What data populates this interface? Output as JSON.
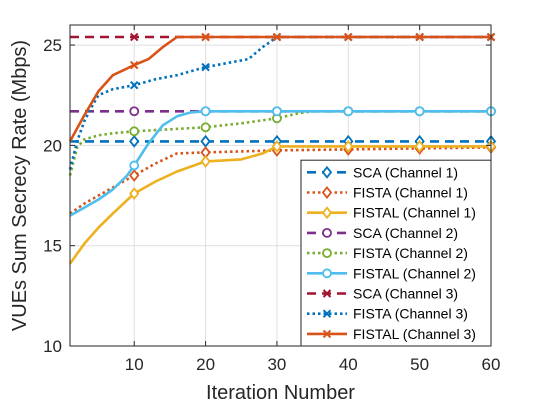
{
  "chart_data": {
    "type": "line",
    "title": "",
    "xlabel": "Iteration Number",
    "ylabel": "VUEs Sum Secrecy Rate (Mbps)",
    "xlim": [
      1,
      60
    ],
    "ylim": [
      10,
      26
    ],
    "xticks": [
      10,
      20,
      30,
      40,
      50,
      60
    ],
    "yticks": [
      10,
      15,
      20,
      25
    ],
    "xtick_labels": [
      "10",
      "20",
      "30",
      "40",
      "50",
      "60"
    ],
    "ytick_labels": [
      "10",
      "15",
      "20",
      "25"
    ],
    "grid": true,
    "legend_position": "bottom-right",
    "series": [
      {
        "name": "SCA (Channel 1)",
        "color": "#0072BD",
        "style": "dashed",
        "marker": "diamond",
        "x": [
          1,
          10,
          20,
          30,
          40,
          50,
          60
        ],
        "y": [
          20.2,
          20.2,
          20.2,
          20.2,
          20.2,
          20.2,
          20.2
        ]
      },
      {
        "name": "FISTA (Channel 1)",
        "color": "#D95319",
        "style": "dotted",
        "marker": "diamond",
        "x": [
          1,
          3,
          5,
          7,
          10,
          13,
          16,
          20,
          25,
          30,
          40,
          50,
          60
        ],
        "y": [
          16.6,
          17.1,
          17.5,
          17.9,
          18.5,
          19.1,
          19.6,
          19.65,
          19.7,
          19.75,
          19.8,
          19.85,
          19.9
        ]
      },
      {
        "name": "FISTAL (Channel 1)",
        "color": "#EDB120",
        "style": "solid",
        "marker": "diamond",
        "x": [
          1,
          3,
          5,
          7,
          10,
          13,
          16,
          20,
          25,
          28,
          30,
          40,
          50,
          60
        ],
        "y": [
          14.1,
          15.1,
          15.9,
          16.6,
          17.6,
          18.2,
          18.7,
          19.2,
          19.3,
          19.6,
          19.95,
          19.95,
          19.95,
          19.95
        ]
      },
      {
        "name": "SCA (Channel 2)",
        "color": "#7E2F8E",
        "style": "dashed",
        "marker": "circle",
        "x": [
          1,
          10,
          20,
          30,
          40,
          50,
          60
        ],
        "y": [
          21.7,
          21.7,
          21.7,
          21.7,
          21.7,
          21.7,
          21.7
        ]
      },
      {
        "name": "FISTA (Channel 2)",
        "color": "#77AC30",
        "style": "dotted",
        "marker": "circle",
        "x": [
          1,
          2,
          3,
          5,
          7,
          10,
          15,
          20,
          25,
          30,
          33,
          35,
          40,
          50,
          60
        ],
        "y": [
          18.5,
          19.9,
          20.3,
          20.5,
          20.6,
          20.7,
          20.8,
          20.9,
          21.1,
          21.35,
          21.6,
          21.7,
          21.7,
          21.7,
          21.7
        ]
      },
      {
        "name": "FISTAL (Channel 2)",
        "color": "#4DBEEE",
        "style": "solid",
        "marker": "circle",
        "x": [
          1,
          3,
          5,
          7,
          9,
          10,
          12,
          14,
          16,
          18,
          20,
          30,
          40,
          50,
          60
        ],
        "y": [
          16.5,
          16.9,
          17.3,
          17.8,
          18.5,
          19.0,
          20.1,
          21.0,
          21.45,
          21.65,
          21.7,
          21.7,
          21.7,
          21.7,
          21.7
        ]
      },
      {
        "name": "SCA (Channel 3)",
        "color": "#A2142F",
        "style": "dashed",
        "marker": "x",
        "x": [
          1,
          10,
          20,
          30,
          40,
          50,
          60
        ],
        "y": [
          25.4,
          25.4,
          25.4,
          25.4,
          25.4,
          25.4,
          25.4
        ]
      },
      {
        "name": "FISTA (Channel 3)",
        "color": "#0072BD",
        "style": "dotted",
        "marker": "x",
        "x": [
          1,
          2,
          3,
          4,
          5,
          7,
          10,
          13,
          16,
          20,
          23,
          26,
          28,
          30,
          40,
          50,
          60
        ],
        "y": [
          18.8,
          20.2,
          21.2,
          21.9,
          22.5,
          22.8,
          23.0,
          23.3,
          23.5,
          23.9,
          24.1,
          24.3,
          24.9,
          25.4,
          25.4,
          25.4,
          25.4
        ]
      },
      {
        "name": "FISTAL (Channel 3)",
        "color": "#D95319",
        "style": "solid",
        "marker": "x",
        "x": [
          1,
          3,
          5,
          7,
          10,
          12,
          14,
          16,
          20,
          30,
          40,
          50,
          60
        ],
        "y": [
          20.2,
          21.5,
          22.7,
          23.5,
          24.0,
          24.3,
          24.9,
          25.4,
          25.4,
          25.4,
          25.4,
          25.4,
          25.4
        ]
      }
    ],
    "marker_x": [
      10,
      20,
      30,
      40,
      50,
      60
    ]
  }
}
